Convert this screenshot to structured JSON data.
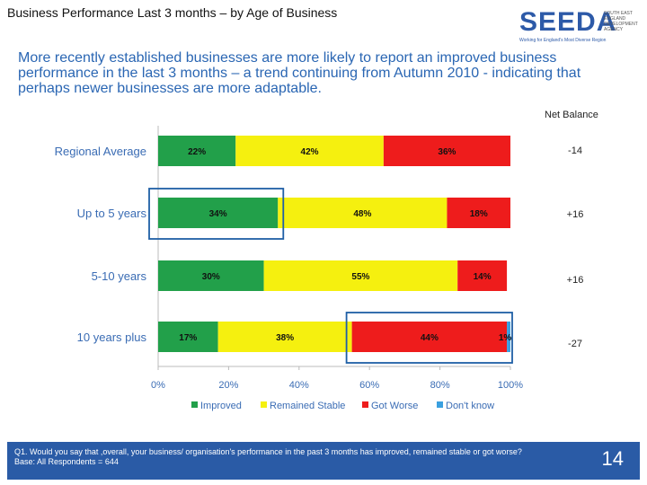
{
  "header": {
    "title": "Business Performance Last 3 months – by Age of Business",
    "lead": "More recently established businesses are more likely to report an improved business performance in the last 3 months – a trend continuing from Autumn 2010 -  indicating that perhaps newer businesses are more adaptable."
  },
  "logo": {
    "word": "SEEDA",
    "tagline": "Working for England's Most Diverse Region",
    "side_text": "SOUTH EAST ENGLAND DEVELOPMENT AGENCY"
  },
  "net_balance": {
    "label": "Net Balance",
    "values": [
      "-14",
      "+16",
      "+16",
      "-27"
    ]
  },
  "footer": {
    "question": "Q1. Would you say that ,overall, your business/ organisation's performance in the past 3 months has improved, remained stable or got worse?",
    "base": "Base: All Respondents = 644",
    "page_number": "14"
  },
  "colors": {
    "improved": "#22a04a",
    "stable": "#f5f00f",
    "worse": "#ee1c1c",
    "dont_know": "#3aa0e0",
    "highlight": "#1f5fa6"
  },
  "chart_data": {
    "type": "bar",
    "orientation": "horizontal",
    "stacked": true,
    "categories": [
      "Regional Average",
      "Up to 5 years",
      "5-10 years",
      "10 years plus"
    ],
    "series": [
      {
        "name": "Improved",
        "values": [
          22,
          34,
          30,
          17
        ],
        "labels": [
          "22%",
          "34%",
          "30%",
          "17%"
        ]
      },
      {
        "name": "Remained Stable",
        "values": [
          42,
          48,
          55,
          38
        ],
        "labels": [
          "42%",
          "48%",
          "55%",
          "38%"
        ]
      },
      {
        "name": "Got Worse",
        "values": [
          36,
          18,
          14,
          44
        ],
        "labels": [
          "36%",
          "18%",
          "14%",
          "44%"
        ]
      },
      {
        "name": "Don't know",
        "values": [
          0,
          0,
          0,
          1
        ],
        "labels": [
          "",
          "",
          "",
          "1%"
        ]
      }
    ],
    "xlim": [
      0,
      100
    ],
    "x_ticks": [
      "0%",
      "20%",
      "40%",
      "60%",
      "80%",
      "100%"
    ],
    "legend": [
      "Improved",
      "Remained Stable",
      "Got Worse",
      "Don't know"
    ],
    "legend_position": "bottom",
    "highlights": [
      {
        "category": "Up to 5 years",
        "series": "Improved"
      },
      {
        "category": "10 years plus",
        "series": "Got Worse"
      }
    ]
  }
}
